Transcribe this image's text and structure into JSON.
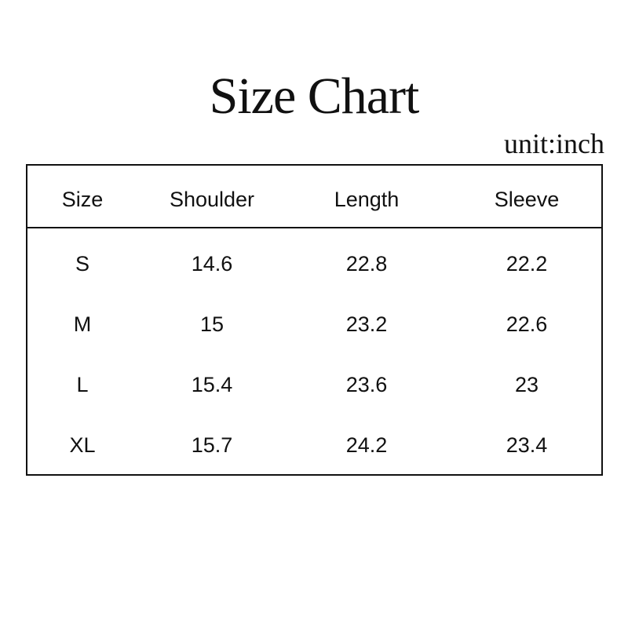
{
  "title": "Size Chart",
  "unit": "unit:inch",
  "columns": [
    "Size",
    "Shoulder",
    "Length",
    "Sleeve"
  ],
  "rows": [
    [
      "S",
      "14.6",
      "22.8",
      "22.2"
    ],
    [
      "M",
      "15",
      "23.2",
      "22.6"
    ],
    [
      "L",
      "15.4",
      "23.6",
      "23"
    ],
    [
      "XL",
      "15.7",
      "24.2",
      "23.4"
    ]
  ]
}
